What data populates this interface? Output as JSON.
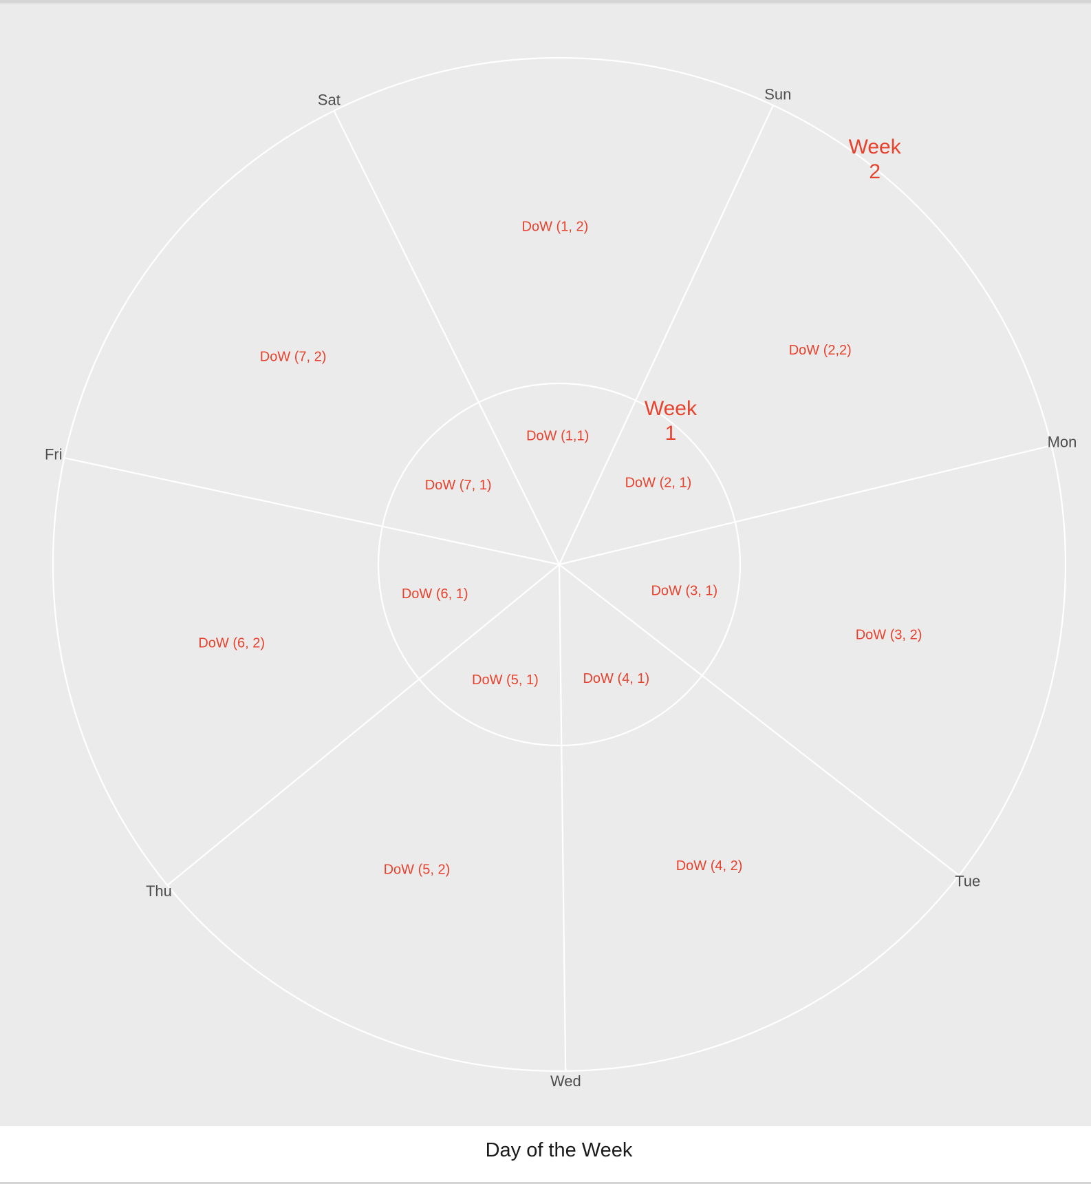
{
  "chart_data": {
    "type": "pie",
    "title": "",
    "xlabel": "Day of the Week",
    "ylabel": "",
    "categories": [
      "Sun",
      "Mon",
      "Tue",
      "Wed",
      "Thu",
      "Fri",
      "Sat"
    ],
    "rings": [
      {
        "name": "Week\n1",
        "labels": [
          "DoW (1,1)",
          "DoW (2, 1)",
          "DoW (3, 1)",
          "DoW (4, 1)",
          "DoW (5, 1)",
          "DoW (6, 1)",
          "DoW (7, 1)"
        ]
      },
      {
        "name": "Week\n2",
        "labels": [
          "DoW (1, 2)",
          "DoW (2,2)",
          "DoW (3, 2)",
          "DoW (4, 2)",
          "DoW (5, 2)",
          "DoW (6, 2)",
          "DoW (7, 2)"
        ]
      }
    ],
    "grid": true,
    "colors": {
      "panel": "#ebebeb",
      "grid": "#ffffff",
      "labels": "#e8412c",
      "ticks": "#4d4d4d"
    }
  }
}
